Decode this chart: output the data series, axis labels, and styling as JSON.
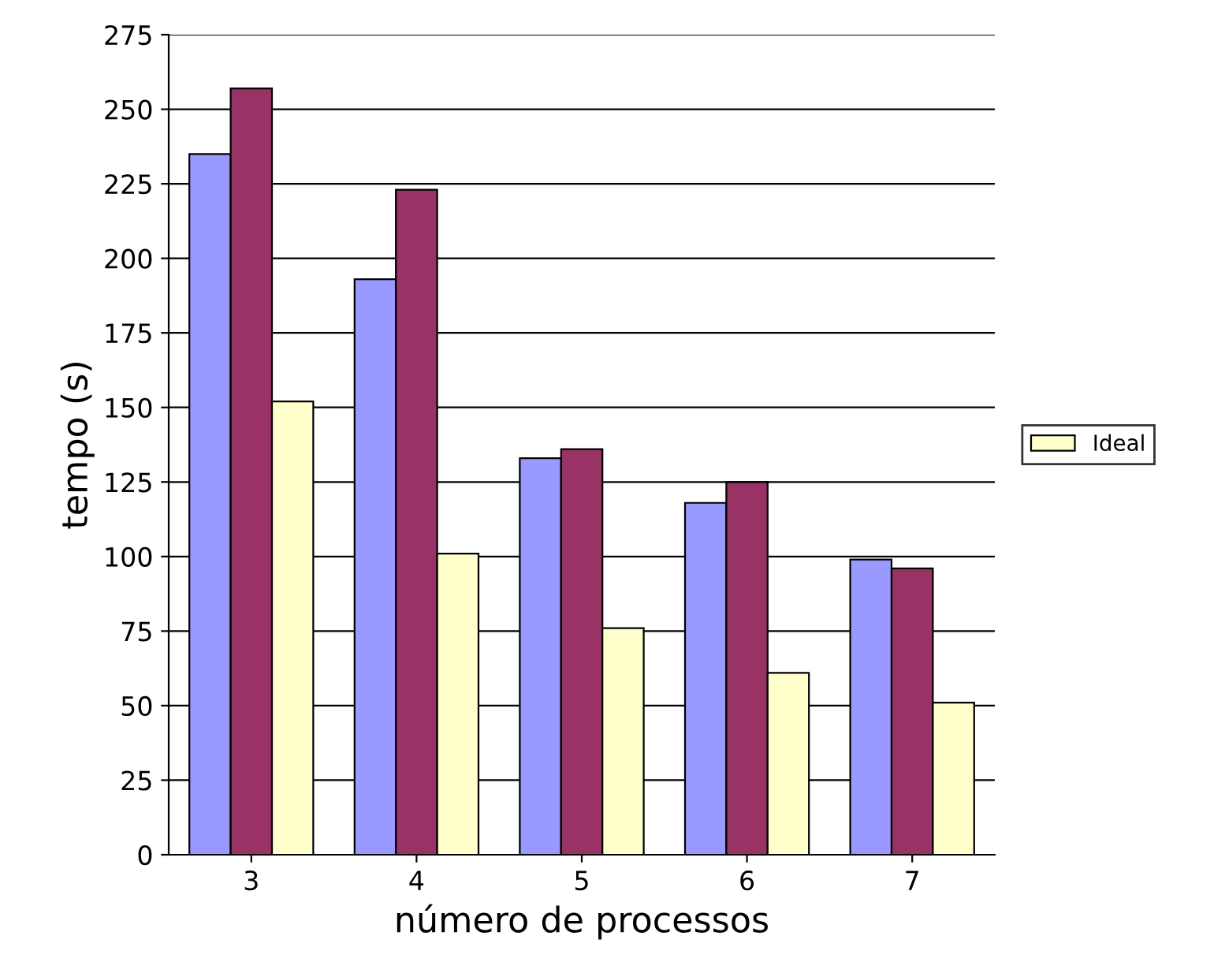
{
  "chart_data": {
    "type": "bar",
    "xlabel": "número de processos",
    "ylabel": "tempo (s)",
    "categories": [
      "3",
      "4",
      "5",
      "6",
      "7"
    ],
    "series": [
      {
        "color": "#9999ff",
        "values": [
          235,
          193,
          133,
          118,
          99
        ]
      },
      {
        "color": "#993366",
        "values": [
          257,
          223,
          136,
          125,
          96
        ]
      },
      {
        "name": "Ideal",
        "color": "#ffffcc",
        "values": [
          152,
          101,
          76,
          61,
          51
        ]
      }
    ],
    "ylim": [
      0,
      275
    ],
    "yticks": [
      0,
      25,
      50,
      75,
      100,
      125,
      150,
      175,
      200,
      225,
      250,
      275
    ],
    "grid": "y",
    "legend": "right"
  }
}
